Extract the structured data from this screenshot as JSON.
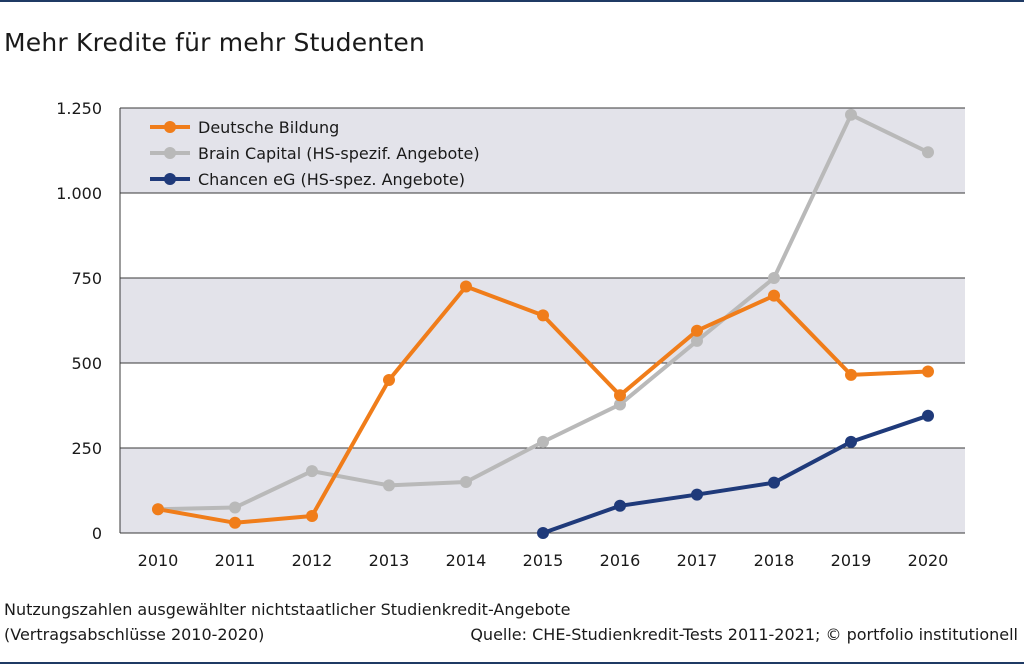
{
  "header": {
    "title": "Mehr Kredite für mehr Studenten"
  },
  "footer": {
    "caption_line1": "Nutzungszahlen ausgewählter nichtstaatlicher Studienkredit-Angebote",
    "caption_line2": "(Vertragsabschlüsse 2010-2020)",
    "source": "Quelle: CHE-Studienkredit-Tests 2011-2021; © portfolio institutionell"
  },
  "chart_data": {
    "type": "line",
    "title": "Mehr Kredite für mehr Studenten",
    "xlabel": "",
    "ylabel": "",
    "x": [
      2010,
      2011,
      2012,
      2013,
      2014,
      2015,
      2016,
      2017,
      2018,
      2019,
      2020
    ],
    "x_tick_labels": [
      "2010",
      "2011",
      "2012",
      "2013",
      "2014",
      "2015",
      "2016",
      "2017",
      "2018",
      "2019",
      "2020"
    ],
    "ylim": [
      0,
      1250
    ],
    "y_ticks": [
      0,
      250,
      500,
      750,
      1000,
      1250
    ],
    "y_tick_labels": [
      "0",
      "250",
      "500",
      "750",
      "1.000",
      "1.250"
    ],
    "grid": true,
    "banded_background": true,
    "legend_position": "top-left",
    "series": [
      {
        "name": "Deutsche Bildung",
        "color": "#f07d1a",
        "values": [
          70,
          30,
          50,
          450,
          725,
          640,
          405,
          595,
          698,
          465,
          475
        ]
      },
      {
        "name": "Brain Capital (HS-spezif. Angebote)",
        "color": "#b9b9b9",
        "values": [
          70,
          75,
          182,
          140,
          150,
          268,
          378,
          565,
          750,
          1230,
          1120
        ]
      },
      {
        "name": "Chancen eG (HS-spez. Angebote)",
        "color": "#1f3a7a",
        "values": [
          null,
          null,
          null,
          null,
          null,
          0,
          80,
          113,
          148,
          268,
          345
        ]
      }
    ]
  }
}
